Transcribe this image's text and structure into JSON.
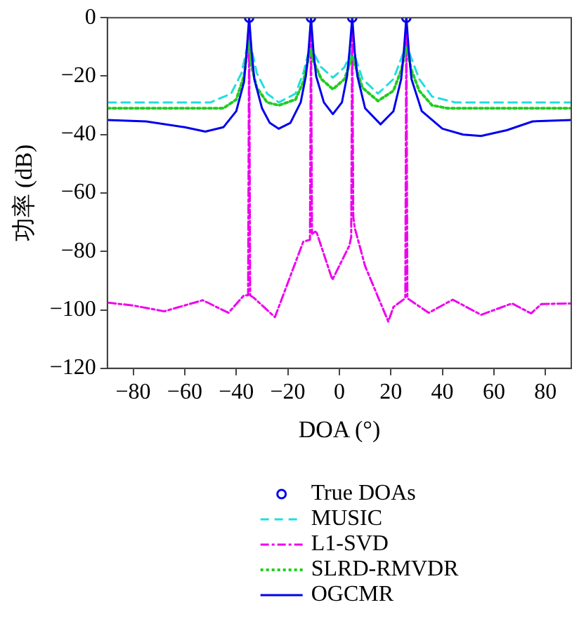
{
  "chart_data": {
    "type": "line",
    "xlabel": "DOA (°)",
    "ylabel": "功率 (dB)",
    "xlim": [
      -90,
      90
    ],
    "xticks": [
      -80,
      -60,
      -40,
      -20,
      0,
      20,
      40,
      60,
      80
    ],
    "ylim": [
      -120,
      0
    ],
    "yticks": [
      -120,
      -100,
      -80,
      -60,
      -40,
      -20,
      0
    ],
    "grid": false,
    "legend": "bottom",
    "series": [
      {
        "name": "True DOAs",
        "type": "scatter",
        "marker": "circle",
        "color": "#0000ee",
        "x": [
          -35,
          -11,
          5,
          26
        ],
        "values": [
          0,
          0,
          0,
          0
        ]
      },
      {
        "name": "MUSIC",
        "type": "line",
        "line_style": "dashed",
        "marker": "none",
        "color": "#22dddd",
        "x": [
          -90,
          -50,
          -42,
          -38,
          -36,
          -35,
          -34,
          -32,
          -28,
          -23.5,
          -17,
          -14,
          -12,
          -11,
          -10,
          -7,
          -2.5,
          2,
          4,
          5,
          6,
          9,
          15,
          21,
          24,
          26,
          28,
          31,
          36,
          45,
          90
        ],
        "values": [
          -29,
          -29,
          -26,
          -19,
          -11,
          -7.5,
          -11,
          -19,
          -26,
          -29,
          -26,
          -19,
          -12,
          -9,
          -12,
          -17,
          -20.5,
          -17,
          -13,
          -11.5,
          -13,
          -21,
          -26,
          -21,
          -14,
          -9,
          -14,
          -21,
          -27,
          -29,
          -29
        ]
      },
      {
        "name": "L1-SVD",
        "type": "line",
        "line_style": "dashdot",
        "marker": "none",
        "color": "#ee00ee",
        "x": [
          -90,
          -80,
          -68,
          -53,
          -43,
          -37,
          -35.4,
          -35,
          -34.6,
          -33,
          -25,
          -14,
          -11.4,
          -11,
          -10.6,
          -9,
          -2.7,
          3.9,
          4.6,
          5,
          5.4,
          6,
          10,
          19,
          21,
          25.6,
          26,
          26.4,
          28,
          34.7,
          44,
          55,
          67,
          74.4,
          78.4,
          90
        ],
        "values": [
          -97.5,
          -98.5,
          -100.5,
          -96.7,
          -101,
          -95,
          -95,
          0,
          -95,
          -96,
          -102.5,
          -76.7,
          -76,
          0,
          -74,
          -73,
          -89.7,
          -78,
          -75,
          0,
          -68,
          -72,
          -85,
          -104,
          -99,
          -96,
          0,
          -96,
          -97,
          -101,
          -96.5,
          -101.7,
          -97.8,
          -101.2,
          -98,
          -97.8
        ]
      },
      {
        "name": "SLRD-RMVDR",
        "type": "line",
        "line_style": "dotted",
        "marker": "none",
        "color": "#22cc22",
        "x": [
          -90,
          -45,
          -40,
          -37,
          -35.5,
          -35,
          -34,
          -32,
          -28,
          -23.5,
          -17,
          -14,
          -12,
          -11,
          -10,
          -7,
          -2.5,
          2,
          4,
          5,
          6,
          9,
          15,
          21,
          24,
          26,
          28,
          31,
          36,
          42,
          90
        ],
        "values": [
          -31,
          -31,
          -28,
          -20,
          -10,
          -8,
          -17,
          -24,
          -29,
          -30,
          -28,
          -22,
          -14,
          -11,
          -15,
          -21,
          -24.5,
          -21,
          -16,
          -13,
          -16,
          -24,
          -28.5,
          -25,
          -18,
          -10,
          -18,
          -25,
          -30,
          -31,
          -31
        ]
      },
      {
        "name": "OGCMR",
        "type": "line",
        "line_style": "solid",
        "marker": "none",
        "color": "#0000ee",
        "x": [
          -90,
          -75,
          -60,
          -52,
          -45,
          -40,
          -37,
          -36,
          -35,
          -34,
          -33,
          -30,
          -27,
          -23.5,
          -19,
          -15,
          -13,
          -12,
          -11,
          -10,
          -9,
          -6,
          -2.5,
          1,
          3,
          4,
          5,
          6,
          7,
          10,
          16,
          21,
          24,
          25,
          26,
          27,
          28,
          32,
          40,
          48,
          55,
          65,
          75,
          90
        ],
        "values": [
          -35,
          -35.5,
          -37.5,
          -39,
          -37.5,
          -32,
          -22,
          -12,
          0,
          -12,
          -21,
          -31,
          -36,
          -38,
          -36,
          -29,
          -20,
          -12,
          0,
          -12,
          -20,
          -29,
          -33,
          -29,
          -20,
          -11,
          0,
          -12,
          -20,
          -31,
          -36.5,
          -32,
          -21,
          -12,
          0,
          -12,
          -21,
          -32,
          -38,
          -40,
          -40.5,
          -38.5,
          -35.5,
          -35
        ]
      }
    ]
  }
}
